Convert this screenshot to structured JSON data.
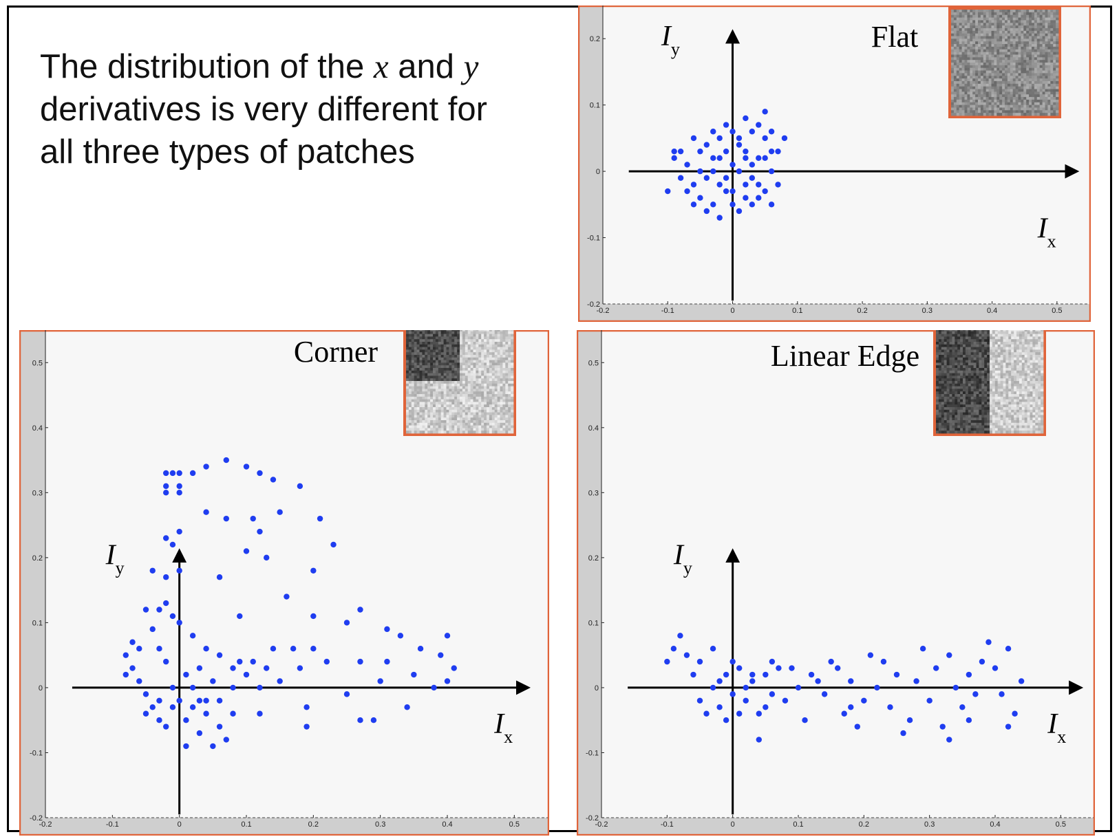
{
  "caption": {
    "line1_pre": "The distribution of the ",
    "var_x": "x",
    "line1_mid": " and ",
    "var_y": "y",
    "line2": "derivatives is very different for",
    "line3": "all three types of patches"
  },
  "colors": {
    "points": "#1f3df0",
    "panel_border": "#e0643a",
    "axis": "#000000",
    "plot_bg": "#f7f7f7",
    "margin_bg": "#cfcfcf"
  },
  "chart_data": [
    {
      "type": "scatter",
      "title": "Flat",
      "xlabel": "Ix",
      "ylabel": "Iy",
      "xlim": [
        -0.2,
        0.55
      ],
      "ylim": [
        -0.2,
        0.25
      ],
      "xticks": [
        "-0.2",
        "-0.1",
        "0",
        "0.1",
        "0.2",
        "0.3",
        "0.4",
        "0.5"
      ],
      "yticks": [
        "-0.2",
        "-0.1",
        "0",
        "0.1",
        "0.2"
      ],
      "inset_patch": "flat",
      "points": [
        [
          -0.05,
          0.0
        ],
        [
          -0.03,
          0.02
        ],
        [
          -0.01,
          -0.03
        ],
        [
          0.01,
          0.04
        ],
        [
          0.03,
          -0.01
        ],
        [
          0.05,
          0.02
        ],
        [
          -0.06,
          -0.02
        ],
        [
          -0.02,
          0.05
        ],
        [
          0.0,
          -0.05
        ],
        [
          0.02,
          0.03
        ],
        [
          0.04,
          -0.04
        ],
        [
          -0.04,
          0.04
        ],
        [
          -0.07,
          0.01
        ],
        [
          0.06,
          0.0
        ],
        [
          -0.01,
          0.07
        ],
        [
          0.01,
          -0.06
        ],
        [
          -0.03,
          -0.05
        ],
        [
          0.03,
          0.06
        ],
        [
          0.05,
          -0.03
        ],
        [
          -0.05,
          -0.04
        ],
        [
          0.07,
          0.03
        ],
        [
          -0.08,
          0.03
        ],
        [
          0.02,
          0.08
        ],
        [
          -0.02,
          -0.07
        ],
        [
          0.04,
          0.07
        ],
        [
          -0.04,
          -0.06
        ],
        [
          0.06,
          -0.05
        ],
        [
          -0.06,
          0.05
        ],
        [
          0.08,
          0.05
        ],
        [
          -0.09,
          0.02
        ],
        [
          0.0,
          0.01
        ],
        [
          -0.01,
          -0.01
        ],
        [
          0.01,
          0.0
        ],
        [
          0.02,
          -0.02
        ],
        [
          -0.02,
          0.02
        ],
        [
          0.03,
          0.01
        ],
        [
          -0.03,
          0.0
        ],
        [
          0.04,
          0.02
        ],
        [
          -0.04,
          -0.01
        ],
        [
          0.05,
          0.05
        ],
        [
          -0.05,
          0.03
        ],
        [
          0.03,
          -0.05
        ],
        [
          -0.03,
          0.06
        ],
        [
          0.0,
          0.06
        ],
        [
          0.0,
          -0.03
        ],
        [
          -0.1,
          -0.03
        ],
        [
          -0.09,
          0.03
        ],
        [
          0.07,
          -0.02
        ],
        [
          0.06,
          0.06
        ],
        [
          0.05,
          0.09
        ],
        [
          -0.06,
          -0.05
        ],
        [
          0.02,
          -0.04
        ],
        [
          -0.01,
          0.03
        ],
        [
          0.01,
          0.05
        ],
        [
          -0.02,
          -0.02
        ],
        [
          0.02,
          0.02
        ],
        [
          0.04,
          -0.02
        ],
        [
          -0.07,
          -0.03
        ],
        [
          0.06,
          0.03
        ],
        [
          -0.08,
          -0.01
        ]
      ]
    },
    {
      "type": "scatter",
      "title": "Corner",
      "xlabel": "Ix",
      "ylabel": "Iy",
      "xlim": [
        -0.2,
        0.55
      ],
      "ylim": [
        -0.2,
        0.55
      ],
      "xticks": [
        "-0.2",
        "-0.1",
        "0",
        "0.1",
        "0.2",
        "0.3",
        "0.4",
        "0.5"
      ],
      "yticks": [
        "-0.2",
        "-0.1",
        "0",
        "0.1",
        "0.2",
        "0.3",
        "0.4",
        "0.5"
      ],
      "inset_patch": "corner",
      "points": [
        [
          -0.02,
          0.33
        ],
        [
          -0.01,
          0.33
        ],
        [
          0.0,
          0.33
        ],
        [
          0.02,
          0.33
        ],
        [
          0.04,
          0.34
        ],
        [
          0.07,
          0.35
        ],
        [
          0.1,
          0.34
        ],
        [
          0.12,
          0.33
        ],
        [
          0.14,
          0.32
        ],
        [
          0.18,
          0.31
        ],
        [
          -0.02,
          0.31
        ],
        [
          0.0,
          0.31
        ],
        [
          -0.02,
          0.3
        ],
        [
          0.0,
          0.3
        ],
        [
          0.07,
          0.26
        ],
        [
          0.04,
          0.27
        ],
        [
          0.11,
          0.26
        ],
        [
          0.15,
          0.27
        ],
        [
          0.21,
          0.26
        ],
        [
          0.23,
          0.22
        ],
        [
          0.12,
          0.24
        ],
        [
          0.1,
          0.21
        ],
        [
          0.13,
          0.2
        ],
        [
          0.2,
          0.18
        ],
        [
          -0.02,
          0.23
        ],
        [
          -0.01,
          0.22
        ],
        [
          0.0,
          0.24
        ],
        [
          -0.04,
          0.18
        ],
        [
          -0.02,
          0.17
        ],
        [
          0.0,
          0.18
        ],
        [
          0.06,
          0.17
        ],
        [
          0.09,
          0.11
        ],
        [
          0.16,
          0.14
        ],
        [
          0.2,
          0.11
        ],
        [
          0.27,
          0.12
        ],
        [
          0.25,
          0.1
        ],
        [
          0.31,
          0.09
        ],
        [
          0.33,
          0.08
        ],
        [
          0.4,
          0.08
        ],
        [
          0.41,
          0.03
        ],
        [
          0.39,
          0.05
        ],
        [
          0.36,
          0.06
        ],
        [
          0.31,
          0.04
        ],
        [
          0.27,
          0.04
        ],
        [
          0.22,
          0.04
        ],
        [
          0.18,
          0.03
        ],
        [
          0.2,
          0.06
        ],
        [
          0.17,
          0.06
        ],
        [
          0.14,
          0.06
        ],
        [
          0.3,
          0.01
        ],
        [
          0.35,
          0.02
        ],
        [
          0.38,
          0.0
        ],
        [
          0.4,
          0.01
        ],
        [
          0.27,
          -0.05
        ],
        [
          0.29,
          -0.05
        ],
        [
          0.34,
          -0.03
        ],
        [
          0.25,
          -0.01
        ],
        [
          0.19,
          -0.03
        ],
        [
          0.19,
          -0.06
        ],
        [
          0.12,
          -0.04
        ],
        [
          -0.08,
          0.05
        ],
        [
          -0.07,
          0.03
        ],
        [
          -0.06,
          0.01
        ],
        [
          -0.05,
          -0.01
        ],
        [
          -0.04,
          -0.03
        ],
        [
          -0.03,
          -0.05
        ],
        [
          -0.02,
          -0.06
        ],
        [
          -0.01,
          0.0
        ],
        [
          0.0,
          -0.02
        ],
        [
          0.01,
          0.02
        ],
        [
          0.02,
          -0.03
        ],
        [
          0.03,
          0.03
        ],
        [
          0.04,
          -0.04
        ],
        [
          0.05,
          0.01
        ],
        [
          0.06,
          -0.06
        ],
        [
          0.07,
          -0.08
        ],
        [
          0.05,
          -0.09
        ],
        [
          0.03,
          -0.07
        ],
        [
          0.01,
          -0.05
        ],
        [
          -0.01,
          -0.03
        ],
        [
          -0.03,
          0.06
        ],
        [
          -0.04,
          0.09
        ],
        [
          -0.05,
          0.12
        ],
        [
          -0.03,
          0.12
        ],
        [
          -0.02,
          0.13
        ],
        [
          -0.01,
          0.11
        ],
        [
          0.0,
          0.1
        ],
        [
          0.02,
          0.08
        ],
        [
          0.04,
          0.06
        ],
        [
          0.06,
          0.05
        ],
        [
          0.08,
          0.03
        ],
        [
          0.1,
          0.02
        ],
        [
          0.12,
          0.0
        ],
        [
          0.15,
          0.01
        ],
        [
          0.08,
          0.0
        ],
        [
          0.06,
          -0.02
        ],
        [
          0.03,
          -0.02
        ],
        [
          0.02,
          0.0
        ],
        [
          -0.02,
          0.04
        ],
        [
          -0.06,
          0.06
        ],
        [
          -0.07,
          0.07
        ],
        [
          -0.08,
          0.02
        ],
        [
          -0.05,
          -0.04
        ],
        [
          -0.03,
          -0.02
        ],
        [
          0.01,
          -0.09
        ],
        [
          0.04,
          -0.02
        ],
        [
          0.08,
          -0.04
        ],
        [
          0.09,
          0.04
        ],
        [
          0.11,
          0.04
        ],
        [
          0.13,
          0.03
        ]
      ]
    },
    {
      "type": "scatter",
      "title": "Linear Edge",
      "xlabel": "Ix",
      "ylabel": "Iy",
      "xlim": [
        -0.2,
        0.55
      ],
      "ylim": [
        -0.2,
        0.55
      ],
      "xticks": [
        "-0.2",
        "-0.1",
        "0",
        "0.1",
        "0.2",
        "0.3",
        "0.4",
        "0.5"
      ],
      "yticks": [
        "-0.2",
        "-0.1",
        "0",
        "0.1",
        "0.2",
        "0.3",
        "0.4",
        "0.5"
      ],
      "inset_patch": "edge",
      "points": [
        [
          -0.1,
          0.04
        ],
        [
          -0.09,
          0.06
        ],
        [
          -0.08,
          0.08
        ],
        [
          -0.07,
          0.05
        ],
        [
          -0.06,
          0.02
        ],
        [
          -0.05,
          -0.02
        ],
        [
          -0.04,
          -0.04
        ],
        [
          -0.03,
          0.0
        ],
        [
          -0.02,
          -0.03
        ],
        [
          -0.01,
          0.02
        ],
        [
          0.0,
          -0.01
        ],
        [
          0.01,
          0.03
        ],
        [
          0.02,
          -0.02
        ],
        [
          0.03,
          0.01
        ],
        [
          0.04,
          -0.04
        ],
        [
          0.05,
          0.02
        ],
        [
          0.06,
          -0.01
        ],
        [
          0.07,
          0.03
        ],
        [
          0.08,
          -0.02
        ],
        [
          0.1,
          0.0
        ],
        [
          0.12,
          0.02
        ],
        [
          0.14,
          -0.01
        ],
        [
          0.16,
          0.03
        ],
        [
          0.17,
          -0.04
        ],
        [
          0.18,
          0.01
        ],
        [
          0.2,
          -0.02
        ],
        [
          0.21,
          0.05
        ],
        [
          0.22,
          0.0
        ],
        [
          0.24,
          -0.03
        ],
        [
          0.25,
          0.02
        ],
        [
          0.27,
          -0.05
        ],
        [
          0.28,
          0.01
        ],
        [
          0.29,
          0.06
        ],
        [
          0.3,
          -0.02
        ],
        [
          0.31,
          0.03
        ],
        [
          0.32,
          -0.06
        ],
        [
          0.33,
          0.05
        ],
        [
          0.34,
          0.0
        ],
        [
          0.35,
          -0.03
        ],
        [
          0.36,
          0.02
        ],
        [
          0.37,
          -0.01
        ],
        [
          0.38,
          0.04
        ],
        [
          0.39,
          0.07
        ],
        [
          0.4,
          0.03
        ],
        [
          0.41,
          -0.01
        ],
        [
          0.42,
          0.06
        ],
        [
          0.43,
          -0.04
        ],
        [
          0.44,
          0.01
        ],
        [
          -0.05,
          0.04
        ],
        [
          -0.03,
          0.06
        ],
        [
          -0.01,
          -0.05
        ],
        [
          0.01,
          -0.04
        ],
        [
          0.03,
          0.02
        ],
        [
          0.05,
          -0.03
        ],
        [
          0.04,
          -0.08
        ],
        [
          0.11,
          -0.05
        ],
        [
          0.15,
          0.04
        ],
        [
          0.19,
          -0.06
        ],
        [
          0.23,
          0.04
        ],
        [
          0.26,
          -0.07
        ],
        [
          0.33,
          -0.08
        ],
        [
          0.36,
          -0.05
        ],
        [
          0.42,
          -0.06
        ],
        [
          -0.02,
          0.01
        ],
        [
          0.0,
          0.04
        ],
        [
          0.02,
          0.0
        ],
        [
          0.06,
          0.04
        ],
        [
          0.09,
          0.03
        ],
        [
          0.13,
          0.01
        ],
        [
          0.18,
          -0.03
        ]
      ]
    }
  ]
}
